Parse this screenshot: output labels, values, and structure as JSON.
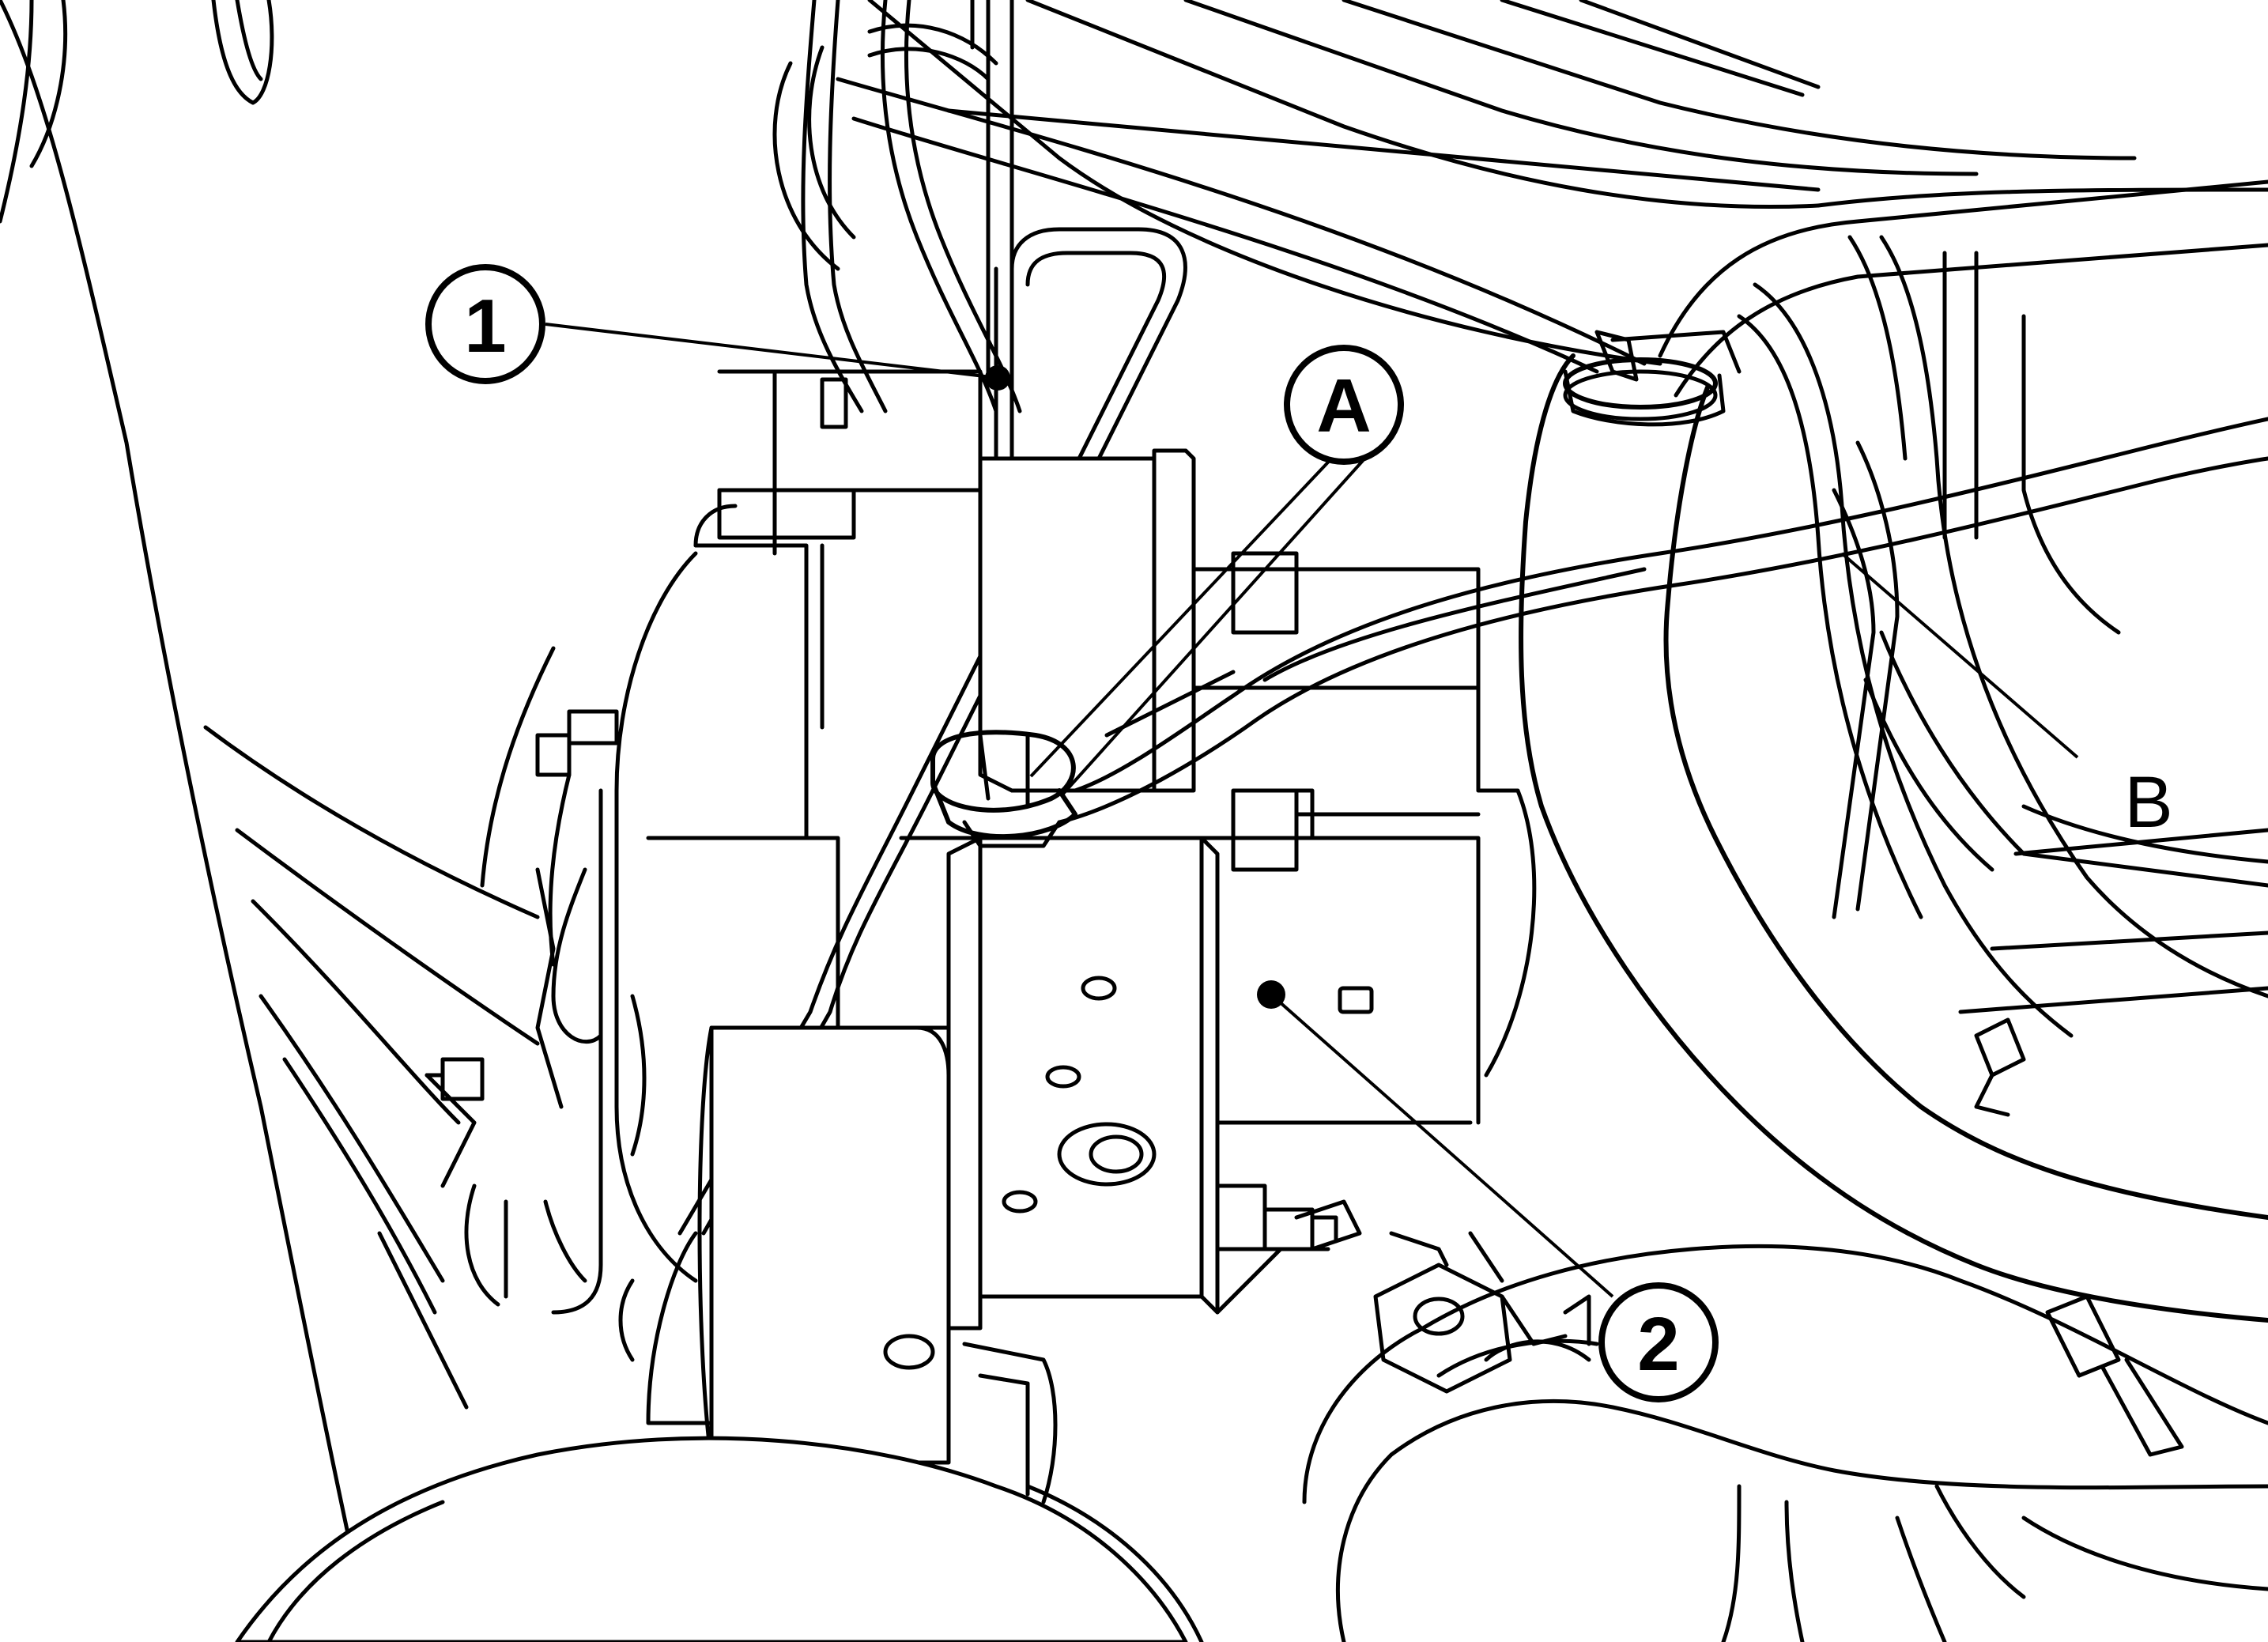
{
  "callouts": {
    "one": "1",
    "two": "2",
    "a": "A",
    "b": "B"
  },
  "colors": {
    "line": "#000000",
    "background": "#ffffff"
  }
}
